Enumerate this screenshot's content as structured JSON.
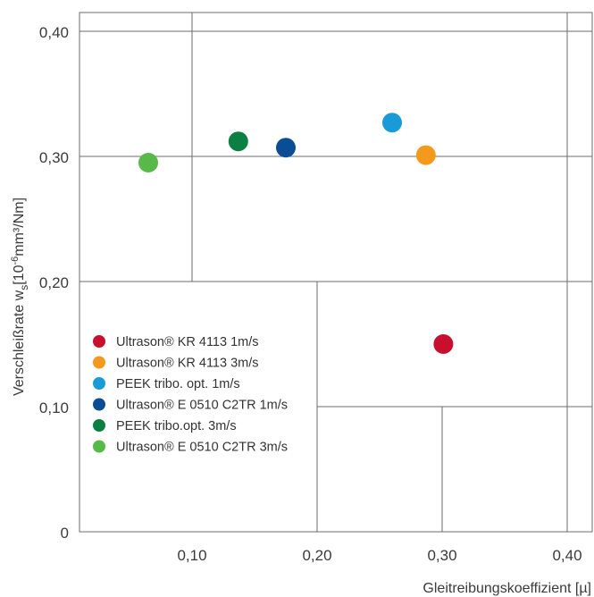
{
  "chart_data": {
    "type": "scatter",
    "xlabel": "Gleitreibungskoeffizient [µ]",
    "ylabel": "Verschleißrate w_s [10⁻⁶mm³/Nm]",
    "ylabel_main": "Verschleißrate w",
    "ylabel_sub": "s",
    "ylabel_bracket": "[10",
    "ylabel_exp": "-6",
    "ylabel_unit": "mm³/Nm]",
    "xlim": [
      0.01,
      0.42
    ],
    "ylim": [
      0,
      0.415
    ],
    "x_ticks": [
      {
        "value": 0.1,
        "label": "0,10"
      },
      {
        "value": 0.2,
        "label": "0,20"
      },
      {
        "value": 0.3,
        "label": "0,30"
      },
      {
        "value": 0.4,
        "label": "0,40"
      }
    ],
    "y_ticks": [
      {
        "value": 0,
        "label": "0"
      },
      {
        "value": 0.1,
        "label": "0,10"
      },
      {
        "value": 0.2,
        "label": "0,20"
      },
      {
        "value": 0.3,
        "label": "0,30"
      },
      {
        "value": 0.4,
        "label": "0,40"
      }
    ],
    "grid": "quadrant-lines",
    "legend_position": "bottom-left-inside",
    "series": [
      {
        "name": "Ultrason® KR 4113 1m/s",
        "color": "#c8102e",
        "x": 0.301,
        "y": 0.15
      },
      {
        "name": "Ultrason® KR 4113 3m/s",
        "color": "#f39a1e",
        "x": 0.287,
        "y": 0.301
      },
      {
        "name": "PEEK tribo. opt. 1m/s",
        "color": "#1a9ad6",
        "x": 0.26,
        "y": 0.327
      },
      {
        "name": "Ultrason® E 0510 C2TR 1m/s",
        "color": "#0a4d94",
        "x": 0.175,
        "y": 0.307
      },
      {
        "name": "PEEK tribo.opt. 3m/s",
        "color": "#0c7f43",
        "x": 0.137,
        "y": 0.312
      },
      {
        "name": "Ultrason® E 0510 C2TR 3m/s",
        "color": "#57b947",
        "x": 0.065,
        "y": 0.295
      }
    ]
  }
}
